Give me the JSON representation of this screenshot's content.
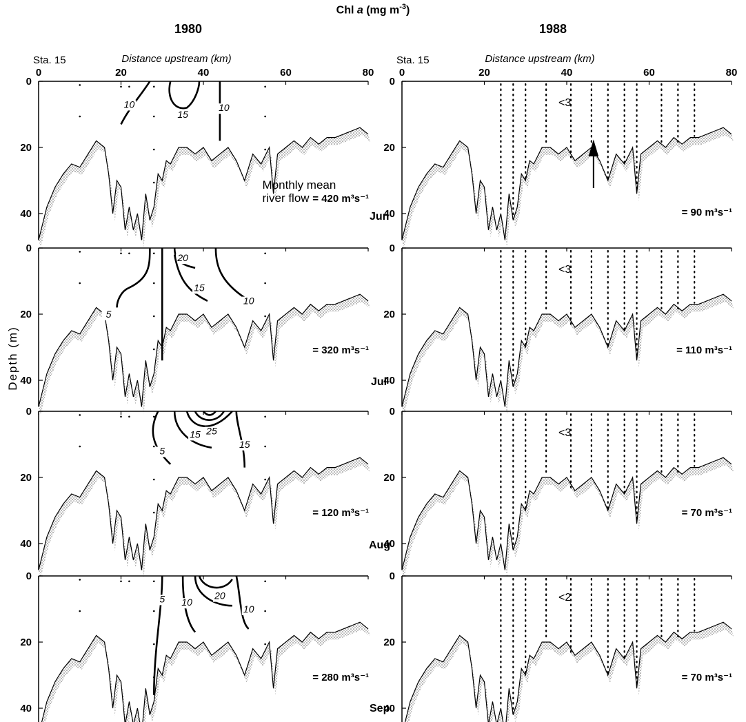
{
  "chart_data": {
    "type": "contour",
    "title": "Chl a (mg m-3)",
    "y_label": "Depth (m)",
    "x_label": "Distance upstream (km)",
    "x_origin_label": "Sta. 15",
    "x_ticks": [
      "0",
      "20",
      "40",
      "60",
      "80"
    ],
    "y_ticks": [
      "0",
      "20",
      "40"
    ],
    "xlim": [
      0,
      80
    ],
    "ylim": [
      0,
      50
    ],
    "columns": [
      {
        "year": "1980"
      },
      {
        "year": "1988"
      }
    ],
    "bottom_depth_profile": {
      "x_km": [
        0,
        2,
        4,
        6,
        8,
        10,
        12,
        14,
        16,
        17,
        18,
        19,
        20,
        21,
        22,
        23,
        24,
        25,
        26,
        27,
        28,
        29,
        30,
        31,
        32,
        34,
        36,
        38,
        40,
        42,
        44,
        46,
        48,
        50,
        52,
        54,
        56,
        57,
        58,
        60,
        62,
        64,
        66,
        68,
        70,
        72,
        74,
        76,
        78,
        80
      ],
      "depth_m": [
        48,
        38,
        32,
        28,
        25,
        26,
        22,
        18,
        20,
        28,
        40,
        30,
        32,
        45,
        38,
        45,
        40,
        48,
        34,
        42,
        38,
        28,
        30,
        24,
        25,
        20,
        20,
        22,
        20,
        24,
        22,
        20,
        24,
        30,
        22,
        25,
        20,
        34,
        22,
        20,
        18,
        20,
        17,
        19,
        17,
        17,
        16,
        15,
        14,
        16
      ]
    },
    "panels": [
      {
        "year": "1980",
        "month": "Jun",
        "flow_prefix": "Monthly mean",
        "flow_prefix2": "river flow",
        "flow": "= 420 m³s⁻¹",
        "contour_labels": [
          "10",
          "15",
          "10"
        ]
      },
      {
        "year": "1980",
        "month": "Jul",
        "flow": "= 320 m³s⁻¹",
        "contour_labels": [
          "5",
          "20",
          "15",
          "10"
        ]
      },
      {
        "year": "1980",
        "month": "Aug",
        "flow": "= 120 m³s⁻¹",
        "contour_labels": [
          "5",
          "15",
          "25",
          "15"
        ]
      },
      {
        "year": "1980",
        "month": "Sep",
        "flow": "= 280 m³s⁻¹",
        "contour_labels": [
          "5",
          "10",
          "20",
          "10"
        ]
      },
      {
        "year": "1988",
        "month": "Jun",
        "flow": "= 90 m³s⁻¹",
        "value_label": "<3"
      },
      {
        "year": "1988",
        "month": "Jul",
        "flow": "= 110 m³s⁻¹",
        "value_label": "<3"
      },
      {
        "year": "1988",
        "month": "Aug",
        "flow": "= 70 m³s⁻¹",
        "value_label": "<3"
      },
      {
        "year": "1988",
        "month": "Sep",
        "flow": "= 70 m³s⁻¹",
        "value_label": "<2"
      }
    ],
    "station_positions_1988_km": [
      24,
      27,
      30,
      35,
      41,
      46,
      50,
      54,
      57,
      63,
      67,
      71
    ]
  }
}
